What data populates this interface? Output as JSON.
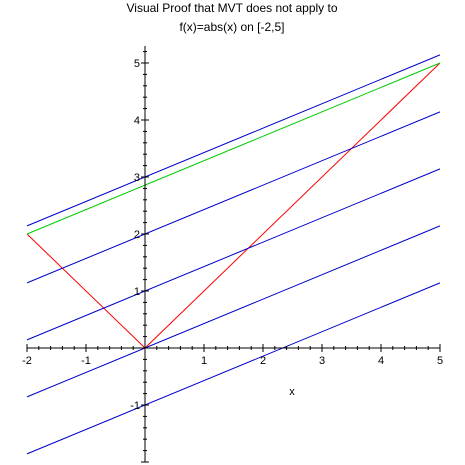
{
  "chart_data": {
    "type": "line",
    "title_lines": [
      "Visual Proof that MVT does not apply to",
      "f(x)=abs(x) on [-2,5]"
    ],
    "xlabel": "x",
    "ylabel": "",
    "xlim": [
      -2,
      5
    ],
    "ylim": [
      -2,
      5.3
    ],
    "x_ticks": [
      -2,
      -1,
      1,
      2,
      3,
      4,
      5
    ],
    "y_ticks": [
      -1,
      1,
      2,
      3,
      4,
      5
    ],
    "grid": false,
    "legend": "none",
    "series": [
      {
        "x": [
          -2,
          0,
          5
        ],
        "y": [
          2,
          0,
          5
        ],
        "color": "#ff0000"
      },
      {
        "x": [
          -2,
          5
        ],
        "y": [
          2,
          5
        ],
        "color": "#00cc00"
      },
      {
        "x": [
          -2,
          5
        ],
        "y": [
          2.142857,
          5.142857
        ],
        "color": "#0000cc"
      },
      {
        "x": [
          -2,
          5
        ],
        "y": [
          1.142857,
          4.142857
        ],
        "color": "#0000cc"
      },
      {
        "x": [
          -2,
          5
        ],
        "y": [
          0.142857,
          3.142857
        ],
        "color": "#0000cc"
      },
      {
        "x": [
          -2,
          5
        ],
        "y": [
          -0.857143,
          2.142857
        ],
        "color": "#0000cc"
      },
      {
        "x": [
          -2,
          5
        ],
        "y": [
          -1.857143,
          1.142857
        ],
        "color": "#0000cc"
      }
    ]
  }
}
